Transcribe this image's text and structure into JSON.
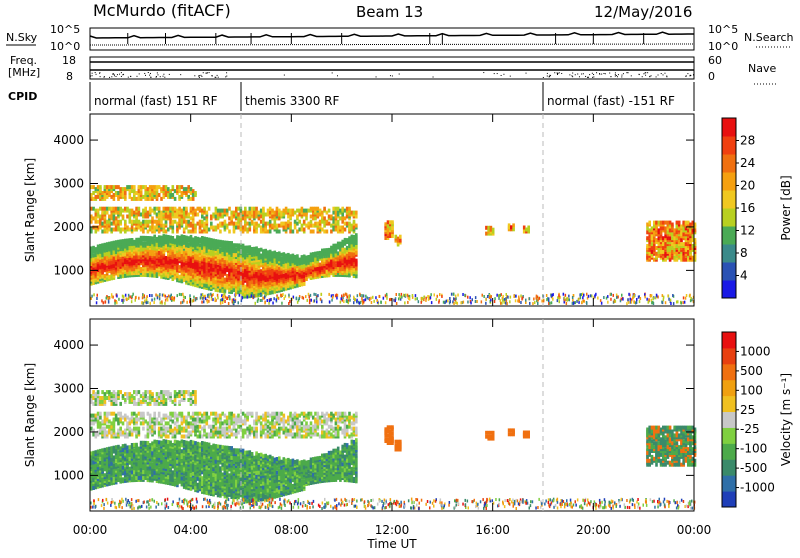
{
  "header": {
    "station": "McMurdo (fitACF)",
    "beam": "Beam 13",
    "date": "12/May/2016"
  },
  "aux_labels": {
    "nsky": "N.Sky",
    "nsky_ticks": [
      "10^5",
      "10^0"
    ],
    "nsearch": "N.Search",
    "nsearch_ticks": [
      "10^5",
      "10^0"
    ],
    "freq_line1": "Freq.",
    "freq_line2": "[MHz]",
    "freq_ticks": [
      "18",
      "8"
    ],
    "nave": "Nave",
    "nave_ticks": [
      "60",
      "0"
    ],
    "cpid": "CPID"
  },
  "cpid_segments": [
    {
      "label": "normal (fast) 151 RF",
      "start": 0
    },
    {
      "label": "themis 3300 RF",
      "start": 6
    },
    {
      "label": "normal (fast) -151 RF",
      "start": 18
    }
  ],
  "time_axis": {
    "label": "Time UT",
    "range": [
      0,
      24
    ],
    "ticks": [
      "00:00",
      "04:00",
      "08:00",
      "12:00",
      "16:00",
      "20:00",
      "00:00"
    ],
    "tick_hours": [
      0,
      4,
      8,
      12,
      16,
      20,
      24
    ],
    "mode_change_hours": [
      6,
      18
    ]
  },
  "chart_data": [
    {
      "type": "heatmap",
      "quantity": "Power",
      "ylabel": "Slant Range [km]",
      "ylim": [
        180,
        4600
      ],
      "yticks": [
        "1000",
        "2000",
        "3000",
        "4000"
      ],
      "ytick_values": [
        1000,
        2000,
        3000,
        4000
      ],
      "colorbar": {
        "label": "Power [dB]",
        "ticks": [
          "4",
          "8",
          "12",
          "16",
          "20",
          "24",
          "28"
        ],
        "colors": [
          "#1a1ae6",
          "#2a52b4",
          "#3a8a8a",
          "#4aaa55",
          "#b8d020",
          "#f0c820",
          "#f5a010",
          "#f07010",
          "#f04010",
          "#e81010"
        ]
      }
    },
    {
      "type": "heatmap",
      "quantity": "Velocity",
      "ylabel": "Slant Range [km]",
      "ylim": [
        180,
        4600
      ],
      "yticks": [
        "1000",
        "2000",
        "3000",
        "4000"
      ],
      "ytick_values": [
        1000,
        2000,
        3000,
        4000
      ],
      "colorbar": {
        "label": "Velocity [m s⁻¹]",
        "ticks": [
          "1000",
          "500",
          "100",
          "25",
          "-25",
          "-100",
          "-500",
          "-1000"
        ],
        "colors": [
          "#1f3fb8",
          "#2f6fa8",
          "#3a8a6a",
          "#4caa4a",
          "#7fd040",
          "#c8c8c8",
          "#f0c020",
          "#f0a010",
          "#f07010",
          "#e84010",
          "#e81010"
        ]
      }
    }
  ]
}
